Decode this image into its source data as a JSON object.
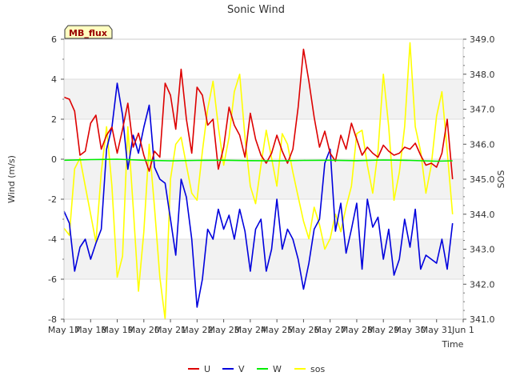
{
  "chart_data": {
    "type": "line",
    "title": "Sonic Wind",
    "xlabel": "Time",
    "ylabel_left": "Wind (m/s)",
    "ylabel_right": "SOS",
    "site_badge": "MB_flux",
    "x_ticks": [
      "May 17",
      "May 18",
      "May 19",
      "May 20",
      "May 21",
      "May 22",
      "May 23",
      "May 24",
      "May 25",
      "May 26",
      "May 27",
      "May 28",
      "May 29",
      "May 30",
      "May 31",
      "Jun 1"
    ],
    "y_left_ticks": [
      "6",
      "4",
      "2",
      "0",
      "-2",
      "-4",
      "-6",
      "-8"
    ],
    "y_right_ticks": [
      "349.0",
      "348.0",
      "347.0",
      "346.0",
      "345.0",
      "344.0",
      "343.0",
      "342.0",
      "341.0"
    ],
    "ylim_left": [
      -8,
      6
    ],
    "ylim_right": [
      341,
      349
    ],
    "xlim_days": [
      0,
      15
    ],
    "grid": "alternating horizontal bands",
    "legend_position": "bottom-center",
    "series": [
      {
        "name": "U",
        "color": "#dd0000",
        "axis": "left",
        "x": [
          0.0,
          0.2,
          0.4,
          0.6,
          0.8,
          1.0,
          1.2,
          1.4,
          1.6,
          1.8,
          2.0,
          2.2,
          2.4,
          2.6,
          2.8,
          3.0,
          3.2,
          3.4,
          3.6,
          3.8,
          4.0,
          4.2,
          4.4,
          4.6,
          4.8,
          5.0,
          5.2,
          5.4,
          5.6,
          5.8,
          6.0,
          6.2,
          6.4,
          6.6,
          6.8,
          7.0,
          7.2,
          7.4,
          7.6,
          7.8,
          8.0,
          8.2,
          8.4,
          8.6,
          8.8,
          9.0,
          9.2,
          9.4,
          9.6,
          9.8,
          10.0,
          10.2,
          10.4,
          10.6,
          10.8,
          11.0,
          11.2,
          11.4,
          11.6,
          11.8,
          12.0,
          12.2,
          12.4,
          12.6,
          12.8,
          13.0,
          13.2,
          13.4,
          13.6,
          13.8,
          14.0,
          14.2,
          14.4,
          14.6
        ],
        "y": [
          3.1,
          3.0,
          2.4,
          0.2,
          0.4,
          1.8,
          2.2,
          0.5,
          1.2,
          1.6,
          0.3,
          1.5,
          2.8,
          0.6,
          1.3,
          0.2,
          -0.6,
          0.4,
          0.1,
          3.8,
          3.2,
          1.5,
          4.5,
          2.0,
          0.3,
          3.6,
          3.2,
          1.7,
          2.0,
          -0.5,
          0.6,
          2.6,
          1.7,
          1.2,
          0.1,
          2.3,
          1.0,
          0.2,
          -0.2,
          0.3,
          1.2,
          0.4,
          -0.2,
          0.5,
          2.6,
          5.5,
          3.9,
          2.1,
          0.6,
          1.4,
          0.3,
          -0.1,
          1.2,
          0.5,
          1.8,
          1.0,
          0.2,
          0.6,
          0.3,
          0.1,
          0.7,
          0.4,
          0.2,
          0.3,
          0.6,
          0.5,
          0.8,
          0.2,
          -0.3,
          -0.2,
          -0.4,
          0.3,
          2.0,
          -1.0
        ]
      },
      {
        "name": "V",
        "color": "#0000dd",
        "axis": "left",
        "x": [
          0.0,
          0.2,
          0.4,
          0.6,
          0.8,
          1.0,
          1.2,
          1.4,
          1.6,
          1.8,
          2.0,
          2.2,
          2.4,
          2.6,
          2.8,
          3.0,
          3.2,
          3.4,
          3.6,
          3.8,
          4.0,
          4.2,
          4.4,
          4.6,
          4.8,
          5.0,
          5.2,
          5.4,
          5.6,
          5.8,
          6.0,
          6.2,
          6.4,
          6.6,
          6.8,
          7.0,
          7.2,
          7.4,
          7.6,
          7.8,
          8.0,
          8.2,
          8.4,
          8.6,
          8.8,
          9.0,
          9.2,
          9.4,
          9.6,
          9.8,
          10.0,
          10.2,
          10.4,
          10.6,
          10.8,
          11.0,
          11.2,
          11.4,
          11.6,
          11.8,
          12.0,
          12.2,
          12.4,
          12.6,
          12.8,
          13.0,
          13.2,
          13.4,
          13.6,
          13.8,
          14.0,
          14.2,
          14.4,
          14.6
        ],
        "y": [
          -2.6,
          -3.2,
          -5.6,
          -4.4,
          -4.0,
          -5.0,
          -4.2,
          -3.5,
          0.5,
          1.6,
          3.8,
          2.2,
          -0.5,
          1.2,
          0.3,
          1.6,
          2.7,
          -0.4,
          -1.0,
          -1.2,
          -3.0,
          -4.8,
          -1.0,
          -1.9,
          -4.0,
          -7.4,
          -6.0,
          -3.5,
          -4.0,
          -2.5,
          -3.5,
          -2.8,
          -4.0,
          -2.5,
          -3.6,
          -5.6,
          -3.5,
          -3.0,
          -5.6,
          -4.5,
          -2.0,
          -4.5,
          -3.5,
          -4.0,
          -5.0,
          -6.5,
          -5.2,
          -3.5,
          -3.0,
          -0.2,
          0.5,
          -3.6,
          -2.2,
          -4.7,
          -3.5,
          -2.2,
          -5.5,
          -2.0,
          -3.4,
          -2.9,
          -5.0,
          -3.5,
          -5.8,
          -5.0,
          -3.0,
          -4.4,
          -2.5,
          -5.5,
          -4.8,
          -5.0,
          -5.2,
          -4.0,
          -5.5,
          -3.2
        ]
      },
      {
        "name": "W",
        "color": "#00ee00",
        "axis": "left",
        "x": [
          0.0,
          1.0,
          2.0,
          3.0,
          4.0,
          5.0,
          6.0,
          7.0,
          8.0,
          9.0,
          10.0,
          11.0,
          12.0,
          13.0,
          14.0,
          14.6
        ],
        "y": [
          -0.05,
          -0.02,
          0.0,
          -0.05,
          -0.08,
          -0.06,
          -0.05,
          -0.07,
          -0.08,
          -0.06,
          -0.05,
          -0.07,
          -0.04,
          -0.06,
          -0.1,
          -0.08
        ]
      },
      {
        "name": "sos",
        "color": "#ffff00",
        "axis": "right",
        "x": [
          0.0,
          0.2,
          0.4,
          0.6,
          0.8,
          1.0,
          1.2,
          1.4,
          1.6,
          1.8,
          2.0,
          2.2,
          2.4,
          2.6,
          2.8,
          3.0,
          3.2,
          3.4,
          3.6,
          3.8,
          4.0,
          4.2,
          4.4,
          4.6,
          4.8,
          5.0,
          5.2,
          5.4,
          5.6,
          5.8,
          6.0,
          6.2,
          6.4,
          6.6,
          6.8,
          7.0,
          7.2,
          7.4,
          7.6,
          7.8,
          8.0,
          8.2,
          8.4,
          8.6,
          8.8,
          9.0,
          9.2,
          9.4,
          9.6,
          9.8,
          10.0,
          10.2,
          10.4,
          10.6,
          10.8,
          11.0,
          11.2,
          11.4,
          11.6,
          11.8,
          12.0,
          12.2,
          12.4,
          12.6,
          12.8,
          13.0,
          13.2,
          13.4,
          13.6,
          13.8,
          14.0,
          14.2,
          14.4,
          14.6
        ],
        "y": [
          343.6,
          343.4,
          345.3,
          345.6,
          344.8,
          344.0,
          343.2,
          345.2,
          346.5,
          344.8,
          342.2,
          342.8,
          346.5,
          344.2,
          341.8,
          343.5,
          346.0,
          344.2,
          342.2,
          341.0,
          345.0,
          346.0,
          346.2,
          345.4,
          344.6,
          344.4,
          345.8,
          347.0,
          347.8,
          346.5,
          345.4,
          346.2,
          347.5,
          348.0,
          346.2,
          344.8,
          344.3,
          345.4,
          346.4,
          345.6,
          344.8,
          346.3,
          346.0,
          345.2,
          344.5,
          343.8,
          343.3,
          344.2,
          343.7,
          343.0,
          343.3,
          344.0,
          343.5,
          344.2,
          344.8,
          346.3,
          346.4,
          345.4,
          344.6,
          345.8,
          348.0,
          346.5,
          344.4,
          345.2,
          346.5,
          348.9,
          346.5,
          345.8,
          344.6,
          345.4,
          346.8,
          347.5,
          345.8,
          344.0
        ]
      }
    ]
  }
}
